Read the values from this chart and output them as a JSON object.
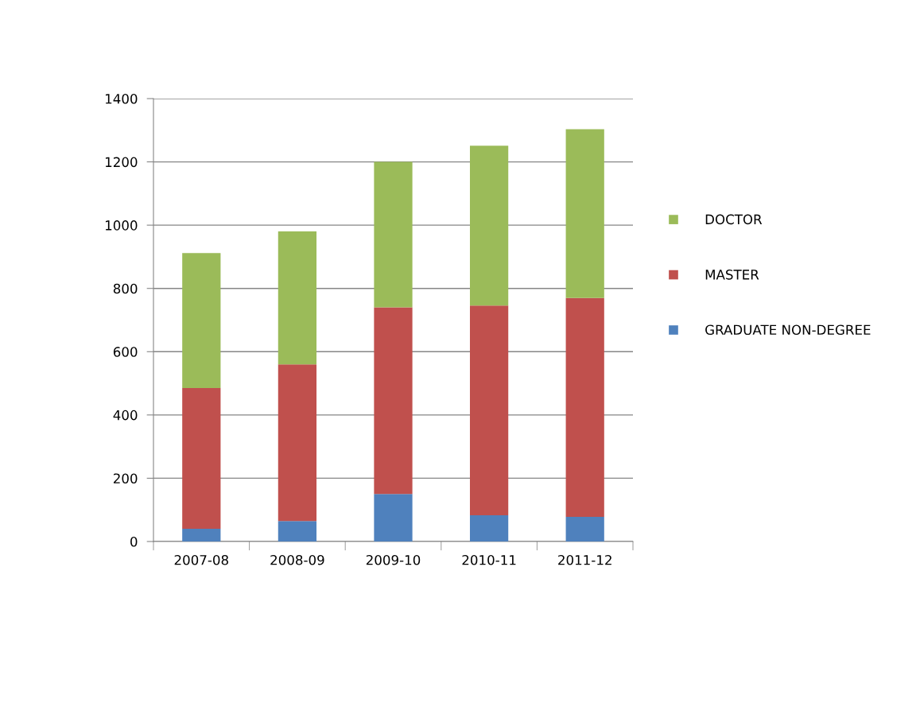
{
  "chart_data": {
    "type": "bar",
    "stacked": true,
    "categories": [
      "2007-08",
      "2008-09",
      "2009-10",
      "2010-11",
      "2011-12"
    ],
    "series": [
      {
        "name": "GRADUATE NON-DEGREE",
        "color": "#4f81bd",
        "values": [
          40,
          65,
          150,
          83,
          78
        ]
      },
      {
        "name": "MASTER",
        "color": "#c0504d",
        "values": [
          445,
          495,
          590,
          663,
          692
        ]
      },
      {
        "name": "DOCTOR",
        "color": "#9bbb59",
        "values": [
          427,
          420,
          460,
          505,
          533
        ]
      }
    ],
    "ylim": [
      0,
      1400
    ],
    "yticks": [
      0,
      200,
      400,
      600,
      800,
      1000,
      1200,
      1400
    ],
    "grid": "y",
    "legend": "right"
  }
}
